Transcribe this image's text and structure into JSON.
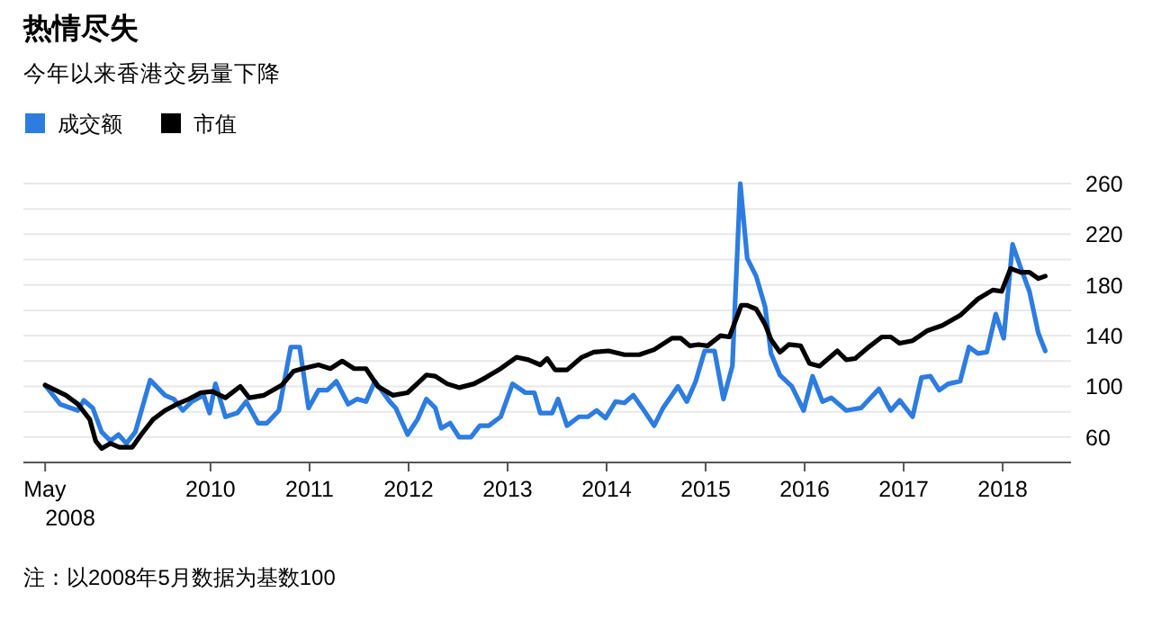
{
  "chart_data": {
    "type": "line",
    "title": "热情尽失",
    "subtitle": "今年以来香港交易量下降",
    "annotations": [
      "注：以2008年5月数据为基数100"
    ],
    "legend": "top left",
    "grid": "y",
    "line_style": "solid",
    "xlim": [
      2008.11,
      2018.69
    ],
    "xticks": [
      {
        "value": 2008.33,
        "label": "May\n2008"
      },
      2010,
      2011,
      2012,
      2013,
      2014,
      2015,
      2016,
      2017,
      2018
    ],
    "ylim": [
      40,
      260
    ],
    "yticks": [
      60,
      {
        "value": 80,
        "label": null
      },
      100,
      {
        "value": 120,
        "label": null
      },
      140,
      {
        "value": 160,
        "label": null
      },
      180,
      {
        "value": 200,
        "label": null
      },
      220,
      {
        "value": 240,
        "label": null
      },
      260
    ],
    "series": [
      {
        "name": "成交额",
        "color": "#2d7ce0",
        "x": [
          2008.33,
          2008.48,
          2008.66,
          2008.72,
          2008.81,
          2008.9,
          2008.99,
          2009.07,
          2009.15,
          2009.24,
          2009.39,
          2009.54,
          2009.63,
          2009.72,
          2009.81,
          2009.93,
          2009.99,
          2010.05,
          2010.15,
          2010.27,
          2010.36,
          2010.48,
          2010.57,
          2010.69,
          2010.81,
          2010.9,
          2010.99,
          2011.09,
          2011.18,
          2011.27,
          2011.39,
          2011.48,
          2011.57,
          2011.66,
          2011.81,
          2011.87,
          2011.99,
          2012.09,
          2012.18,
          2012.27,
          2012.33,
          2012.42,
          2012.51,
          2012.63,
          2012.72,
          2012.81,
          2012.93,
          2013.05,
          2013.18,
          2013.27,
          2013.33,
          2013.45,
          2013.51,
          2013.6,
          2013.72,
          2013.81,
          2013.9,
          2013.99,
          2014.09,
          2014.18,
          2014.27,
          2014.36,
          2014.48,
          2014.57,
          2014.72,
          2014.81,
          2014.9,
          2014.99,
          2015.09,
          2015.18,
          2015.27,
          2015.35,
          2015.42,
          2015.51,
          2015.6,
          2015.66,
          2015.75,
          2015.87,
          2015.99,
          2016.08,
          2016.18,
          2016.27,
          2016.42,
          2016.57,
          2016.75,
          2016.87,
          2016.96,
          2017.09,
          2017.18,
          2017.27,
          2017.36,
          2017.45,
          2017.57,
          2017.66,
          2017.75,
          2017.84,
          2017.93,
          2018.01,
          2018.1,
          2018.18,
          2018.27,
          2018.36,
          2018.43
        ],
        "values": [
          101,
          86,
          81,
          89,
          83,
          64,
          57,
          62,
          55,
          64,
          105,
          93,
          90,
          81,
          88,
          93,
          79,
          102,
          76,
          79,
          88,
          71,
          71,
          81,
          131,
          131,
          83,
          97,
          97,
          104,
          86,
          90,
          88,
          104,
          88,
          83,
          62,
          74,
          90,
          83,
          67,
          71,
          60,
          60,
          69,
          69,
          76,
          102,
          95,
          95,
          79,
          79,
          90,
          69,
          76,
          76,
          81,
          75,
          88,
          87,
          93,
          83,
          69,
          83,
          100,
          88,
          104,
          128,
          128,
          90,
          116,
          260,
          201,
          187,
          163,
          126,
          109,
          100,
          81,
          108,
          88,
          91,
          81,
          83,
          98,
          81,
          89,
          76,
          107,
          108,
          97,
          102,
          104,
          131,
          126,
          127,
          157,
          138,
          212,
          194,
          175,
          142,
          128
        ]
      },
      {
        "name": "市值",
        "color": "#000000",
        "x": [
          2008.33,
          2008.54,
          2008.66,
          2008.78,
          2008.84,
          2008.9,
          2008.99,
          2009.08,
          2009.21,
          2009.3,
          2009.42,
          2009.54,
          2009.66,
          2009.78,
          2009.9,
          2010.02,
          2010.15,
          2010.3,
          2010.39,
          2010.54,
          2010.72,
          2010.84,
          2010.93,
          2011.09,
          2011.21,
          2011.33,
          2011.45,
          2011.57,
          2011.69,
          2011.84,
          2011.99,
          2012.18,
          2012.27,
          2012.39,
          2012.51,
          2012.66,
          2012.78,
          2012.93,
          2013.09,
          2013.21,
          2013.33,
          2013.4,
          2013.48,
          2013.6,
          2013.75,
          2013.87,
          2014.02,
          2014.18,
          2014.33,
          2014.48,
          2014.66,
          2014.75,
          2014.84,
          2014.93,
          2015.02,
          2015.15,
          2015.24,
          2015.36,
          2015.42,
          2015.51,
          2015.6,
          2015.66,
          2015.75,
          2015.84,
          2015.96,
          2016.05,
          2016.15,
          2016.33,
          2016.42,
          2016.51,
          2016.63,
          2016.78,
          2016.87,
          2016.96,
          2017.09,
          2017.24,
          2017.39,
          2017.57,
          2017.75,
          2017.9,
          2017.99,
          2018.08,
          2018.18,
          2018.27,
          2018.36,
          2018.43
        ],
        "values": [
          101,
          93,
          86,
          74,
          57,
          51,
          55,
          52,
          52,
          62,
          74,
          81,
          86,
          90,
          95,
          96,
          91,
          100,
          91,
          93,
          101,
          112,
          114,
          117,
          114,
          120,
          114,
          114,
          100,
          93,
          95,
          109,
          108,
          102,
          99,
          102,
          107,
          114,
          123,
          121,
          117,
          122,
          113,
          113,
          123,
          127,
          128,
          125,
          125,
          129,
          138,
          138,
          132,
          133,
          132,
          140,
          139,
          164,
          164,
          161,
          149,
          137,
          127,
          133,
          132,
          118,
          116,
          128,
          121,
          122,
          130,
          139,
          139,
          134,
          136,
          144,
          148,
          156,
          169,
          176,
          175,
          193,
          190,
          190,
          185,
          187
        ]
      }
    ]
  }
}
